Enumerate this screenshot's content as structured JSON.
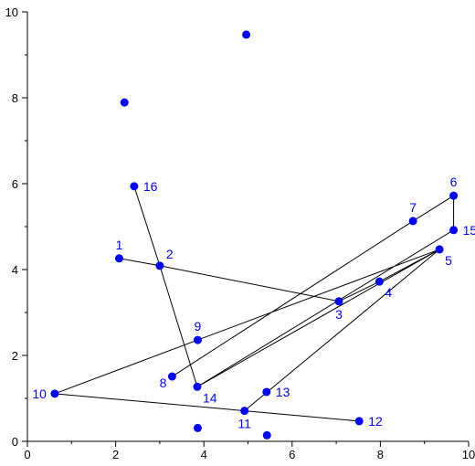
{
  "chart_data": {
    "type": "scatter",
    "xlim": [
      0,
      10
    ],
    "ylim": [
      0,
      10
    ],
    "x_ticks": [
      0,
      2,
      4,
      6,
      8,
      10
    ],
    "x_tick_labels": [
      "0",
      "2",
      "4",
      "6",
      "8",
      "10"
    ],
    "x_minor_ticks": [
      1,
      3,
      5,
      7,
      9
    ],
    "y_ticks": [
      0,
      2,
      4,
      6,
      8,
      10
    ],
    "y_tick_labels": [
      "0",
      "2",
      "4",
      "6",
      "8",
      "10"
    ],
    "y_minor_ticks": [
      1,
      3,
      5,
      7,
      9
    ],
    "grid": false,
    "point_color": "#0000ff",
    "line_color": "#000000",
    "labeled_points": [
      {
        "label": "1",
        "x": 2.08,
        "y": 4.26,
        "label_pos": "above"
      },
      {
        "label": "2",
        "x": 3.0,
        "y": 4.09,
        "label_pos": "above-right"
      },
      {
        "label": "3",
        "x": 7.06,
        "y": 3.26,
        "label_pos": "below"
      },
      {
        "label": "4",
        "x": 7.98,
        "y": 3.72,
        "label_pos": "below-right"
      },
      {
        "label": "5",
        "x": 9.34,
        "y": 4.47,
        "label_pos": "below-right"
      },
      {
        "label": "6",
        "x": 9.66,
        "y": 5.72,
        "label_pos": "above"
      },
      {
        "label": "7",
        "x": 8.74,
        "y": 5.13,
        "label_pos": "above"
      },
      {
        "label": "8",
        "x": 3.28,
        "y": 1.51,
        "label_pos": "below-left"
      },
      {
        "label": "9",
        "x": 3.86,
        "y": 2.36,
        "label_pos": "above"
      },
      {
        "label": "10",
        "x": 0.62,
        "y": 1.11,
        "label_pos": "left"
      },
      {
        "label": "11",
        "x": 4.92,
        "y": 0.71,
        "label_pos": "below"
      },
      {
        "label": "12",
        "x": 7.52,
        "y": 0.47,
        "label_pos": "right"
      },
      {
        "label": "13",
        "x": 5.42,
        "y": 1.15,
        "label_pos": "right"
      },
      {
        "label": "14",
        "x": 3.85,
        "y": 1.27,
        "label_pos": "below-right"
      },
      {
        "label": "15",
        "x": 9.66,
        "y": 4.92,
        "label_pos": "right"
      },
      {
        "label": "16",
        "x": 2.42,
        "y": 5.94,
        "label_pos": "right"
      }
    ],
    "unlabeled_points": [
      {
        "x": 2.2,
        "y": 7.89
      },
      {
        "x": 4.96,
        "y": 9.47
      },
      {
        "x": 3.86,
        "y": 0.31
      },
      {
        "x": 5.43,
        "y": 0.14
      }
    ],
    "path_order": [
      "1",
      "2",
      "3",
      "4",
      "5",
      "11",
      "12",
      "10",
      "9",
      "5",
      "14",
      "15",
      "6",
      "7",
      "8"
    ],
    "extra_segments": [
      [
        "2",
        "16"
      ],
      [
        "2",
        "14"
      ]
    ]
  }
}
